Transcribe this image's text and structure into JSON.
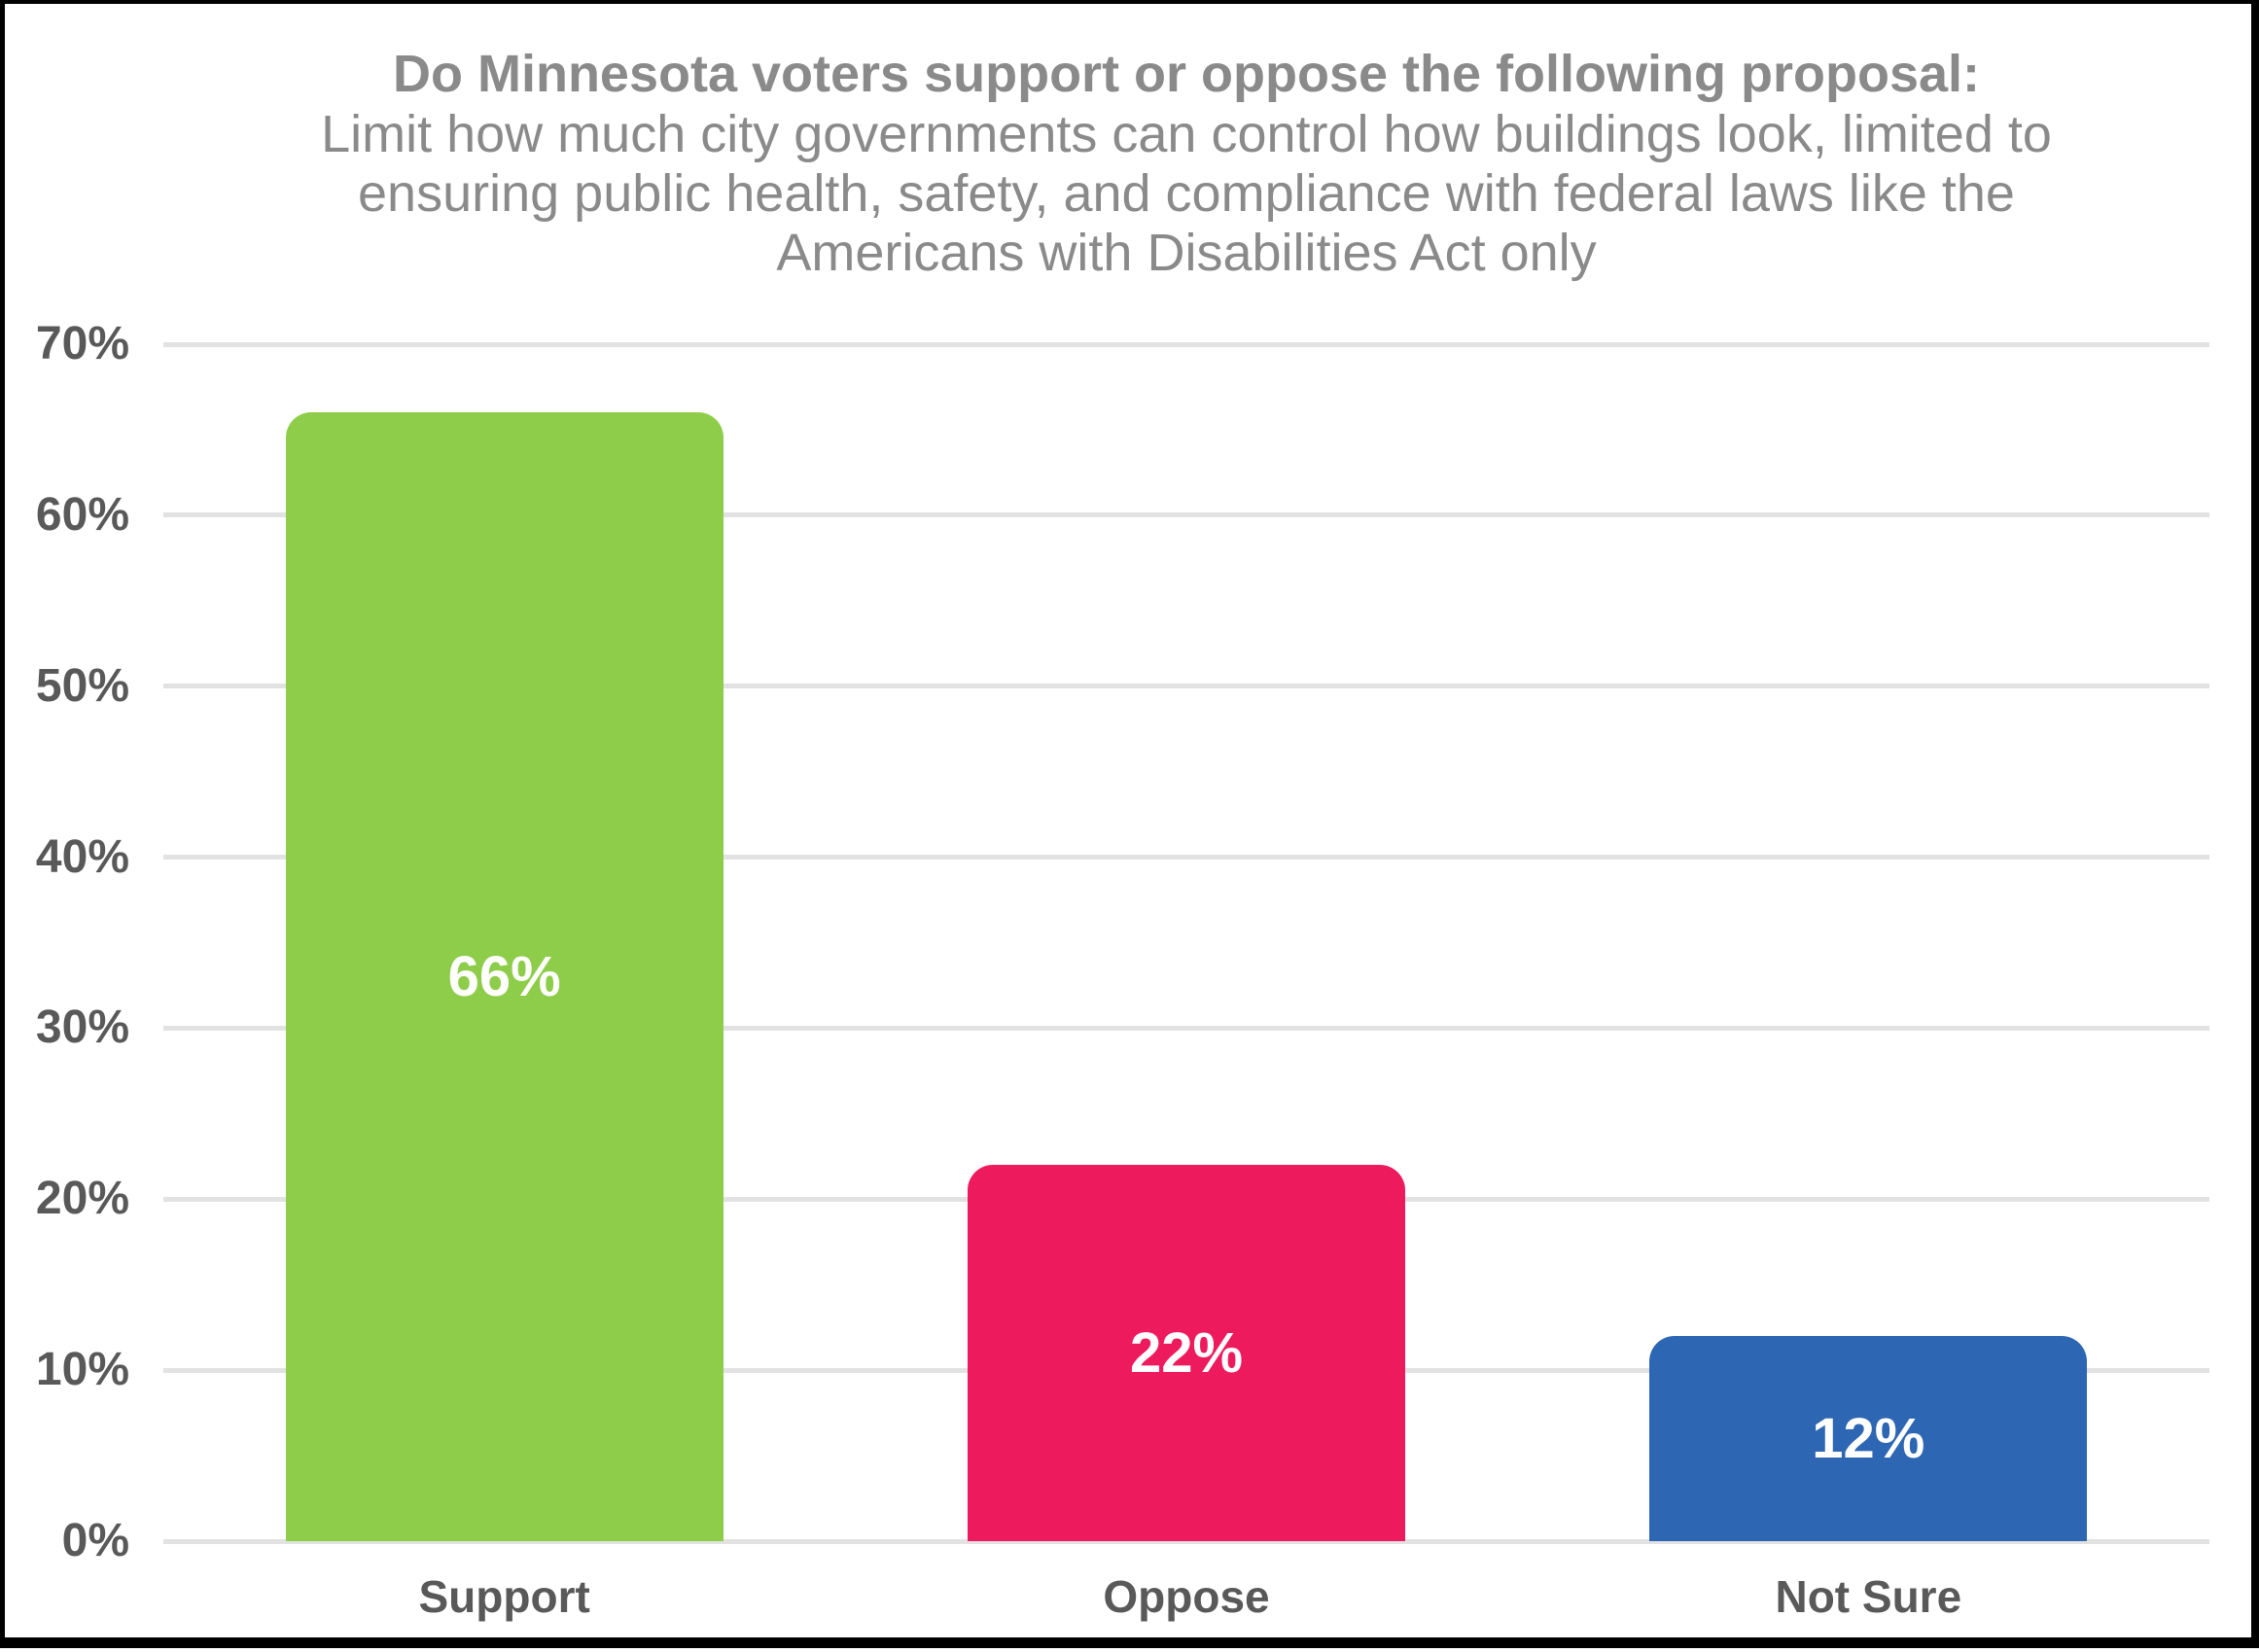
{
  "page": {
    "background_color": "#ffffff",
    "frame_border_color": "#000000"
  },
  "chart_data": {
    "type": "bar",
    "title": "Do Minnesota voters support or oppose the following proposal:",
    "subtitle": "Limit how much city governments can control how buildings look, limited to ensuring public health, safety, and compliance with federal laws like the Americans with Disabilities Act only",
    "categories": [
      "Support",
      "Oppose",
      "Not Sure"
    ],
    "values": [
      66,
      22,
      12
    ],
    "data_labels": [
      "66%",
      "22%",
      "12%"
    ],
    "bar_colors": [
      "#8ECD49",
      "#EE1A5E",
      "#2D66B2"
    ],
    "data_label_color": "#ffffff",
    "y_tick_labels": [
      "0%",
      "10%",
      "20%",
      "30%",
      "40%",
      "50%",
      "60%",
      "70%"
    ],
    "y_tick_values": [
      0,
      10,
      20,
      30,
      40,
      50,
      60,
      70
    ],
    "ylim": [
      0,
      70
    ],
    "xlabel": "",
    "ylabel": "",
    "grid": "horizontal",
    "gridline_color": "#e2e2e2",
    "legend": "none",
    "title_color": "#8a8a8a",
    "axis_label_color": "#595959"
  }
}
